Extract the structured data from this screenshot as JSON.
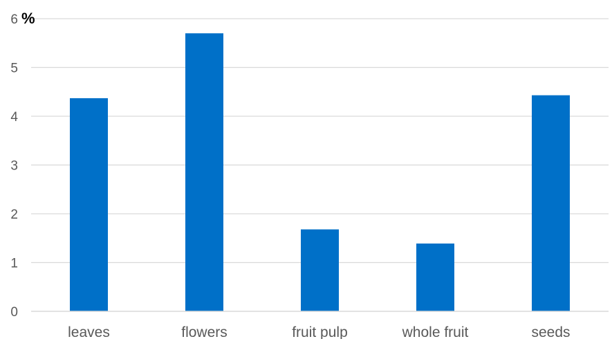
{
  "chart_data": {
    "type": "bar",
    "unit_label": "%",
    "categories": [
      "leaves",
      "flowers",
      "fruit pulp",
      "whole fruit",
      "seeds"
    ],
    "values": [
      4.37,
      5.7,
      1.68,
      1.39,
      4.43
    ],
    "ylim": [
      0,
      6
    ],
    "yticks": [
      "0",
      "1",
      "2",
      "3",
      "4",
      "5",
      "6"
    ],
    "grid": true,
    "bar_color": "#0070C8",
    "grid_color": "#D9D9D9"
  }
}
